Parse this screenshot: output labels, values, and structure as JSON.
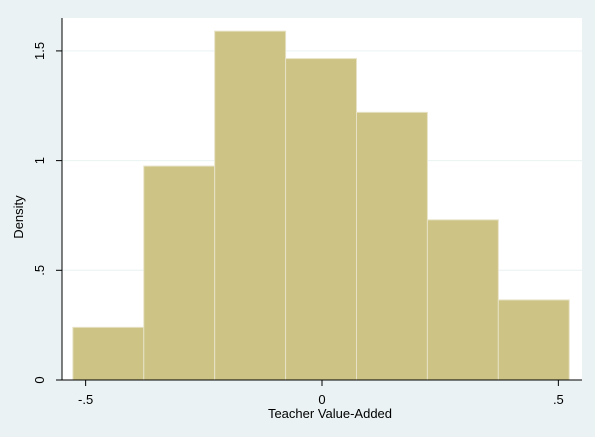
{
  "chart_data": {
    "type": "bar",
    "subtype": "histogram",
    "xlabel": "Teacher Value-Added",
    "ylabel": "Density",
    "xlim": [
      -0.55,
      0.55
    ],
    "ylim": [
      0,
      1.65
    ],
    "x_ticks": [
      {
        "value": -0.5,
        "label": "-.5"
      },
      {
        "value": 0,
        "label": "0"
      },
      {
        "value": 0.5,
        "label": ".5"
      }
    ],
    "y_ticks": [
      {
        "value": 0,
        "label": "0"
      },
      {
        "value": 0.5,
        "label": ".5"
      },
      {
        "value": 1,
        "label": "1"
      },
      {
        "value": 1.5,
        "label": "1.5"
      }
    ],
    "bins": [
      {
        "x0": -0.527,
        "x1": -0.377,
        "value": 0.24
      },
      {
        "x0": -0.377,
        "x1": -0.227,
        "value": 0.975
      },
      {
        "x0": -0.227,
        "x1": -0.077,
        "value": 1.59
      },
      {
        "x0": -0.077,
        "x1": 0.073,
        "value": 1.465
      },
      {
        "x0": 0.073,
        "x1": 0.223,
        "value": 1.22
      },
      {
        "x0": 0.223,
        "x1": 0.373,
        "value": 0.73
      },
      {
        "x0": 0.373,
        "x1": 0.523,
        "value": 0.365
      }
    ],
    "grid": true,
    "legend": "none",
    "colors": {
      "bar_fill": "#cdc384",
      "bar_edge": "#e7e2c6",
      "outer_background": "#eaf2f3",
      "plot_background": "#ffffff",
      "grid": "#eaf2f3",
      "axis": "#000000"
    }
  }
}
